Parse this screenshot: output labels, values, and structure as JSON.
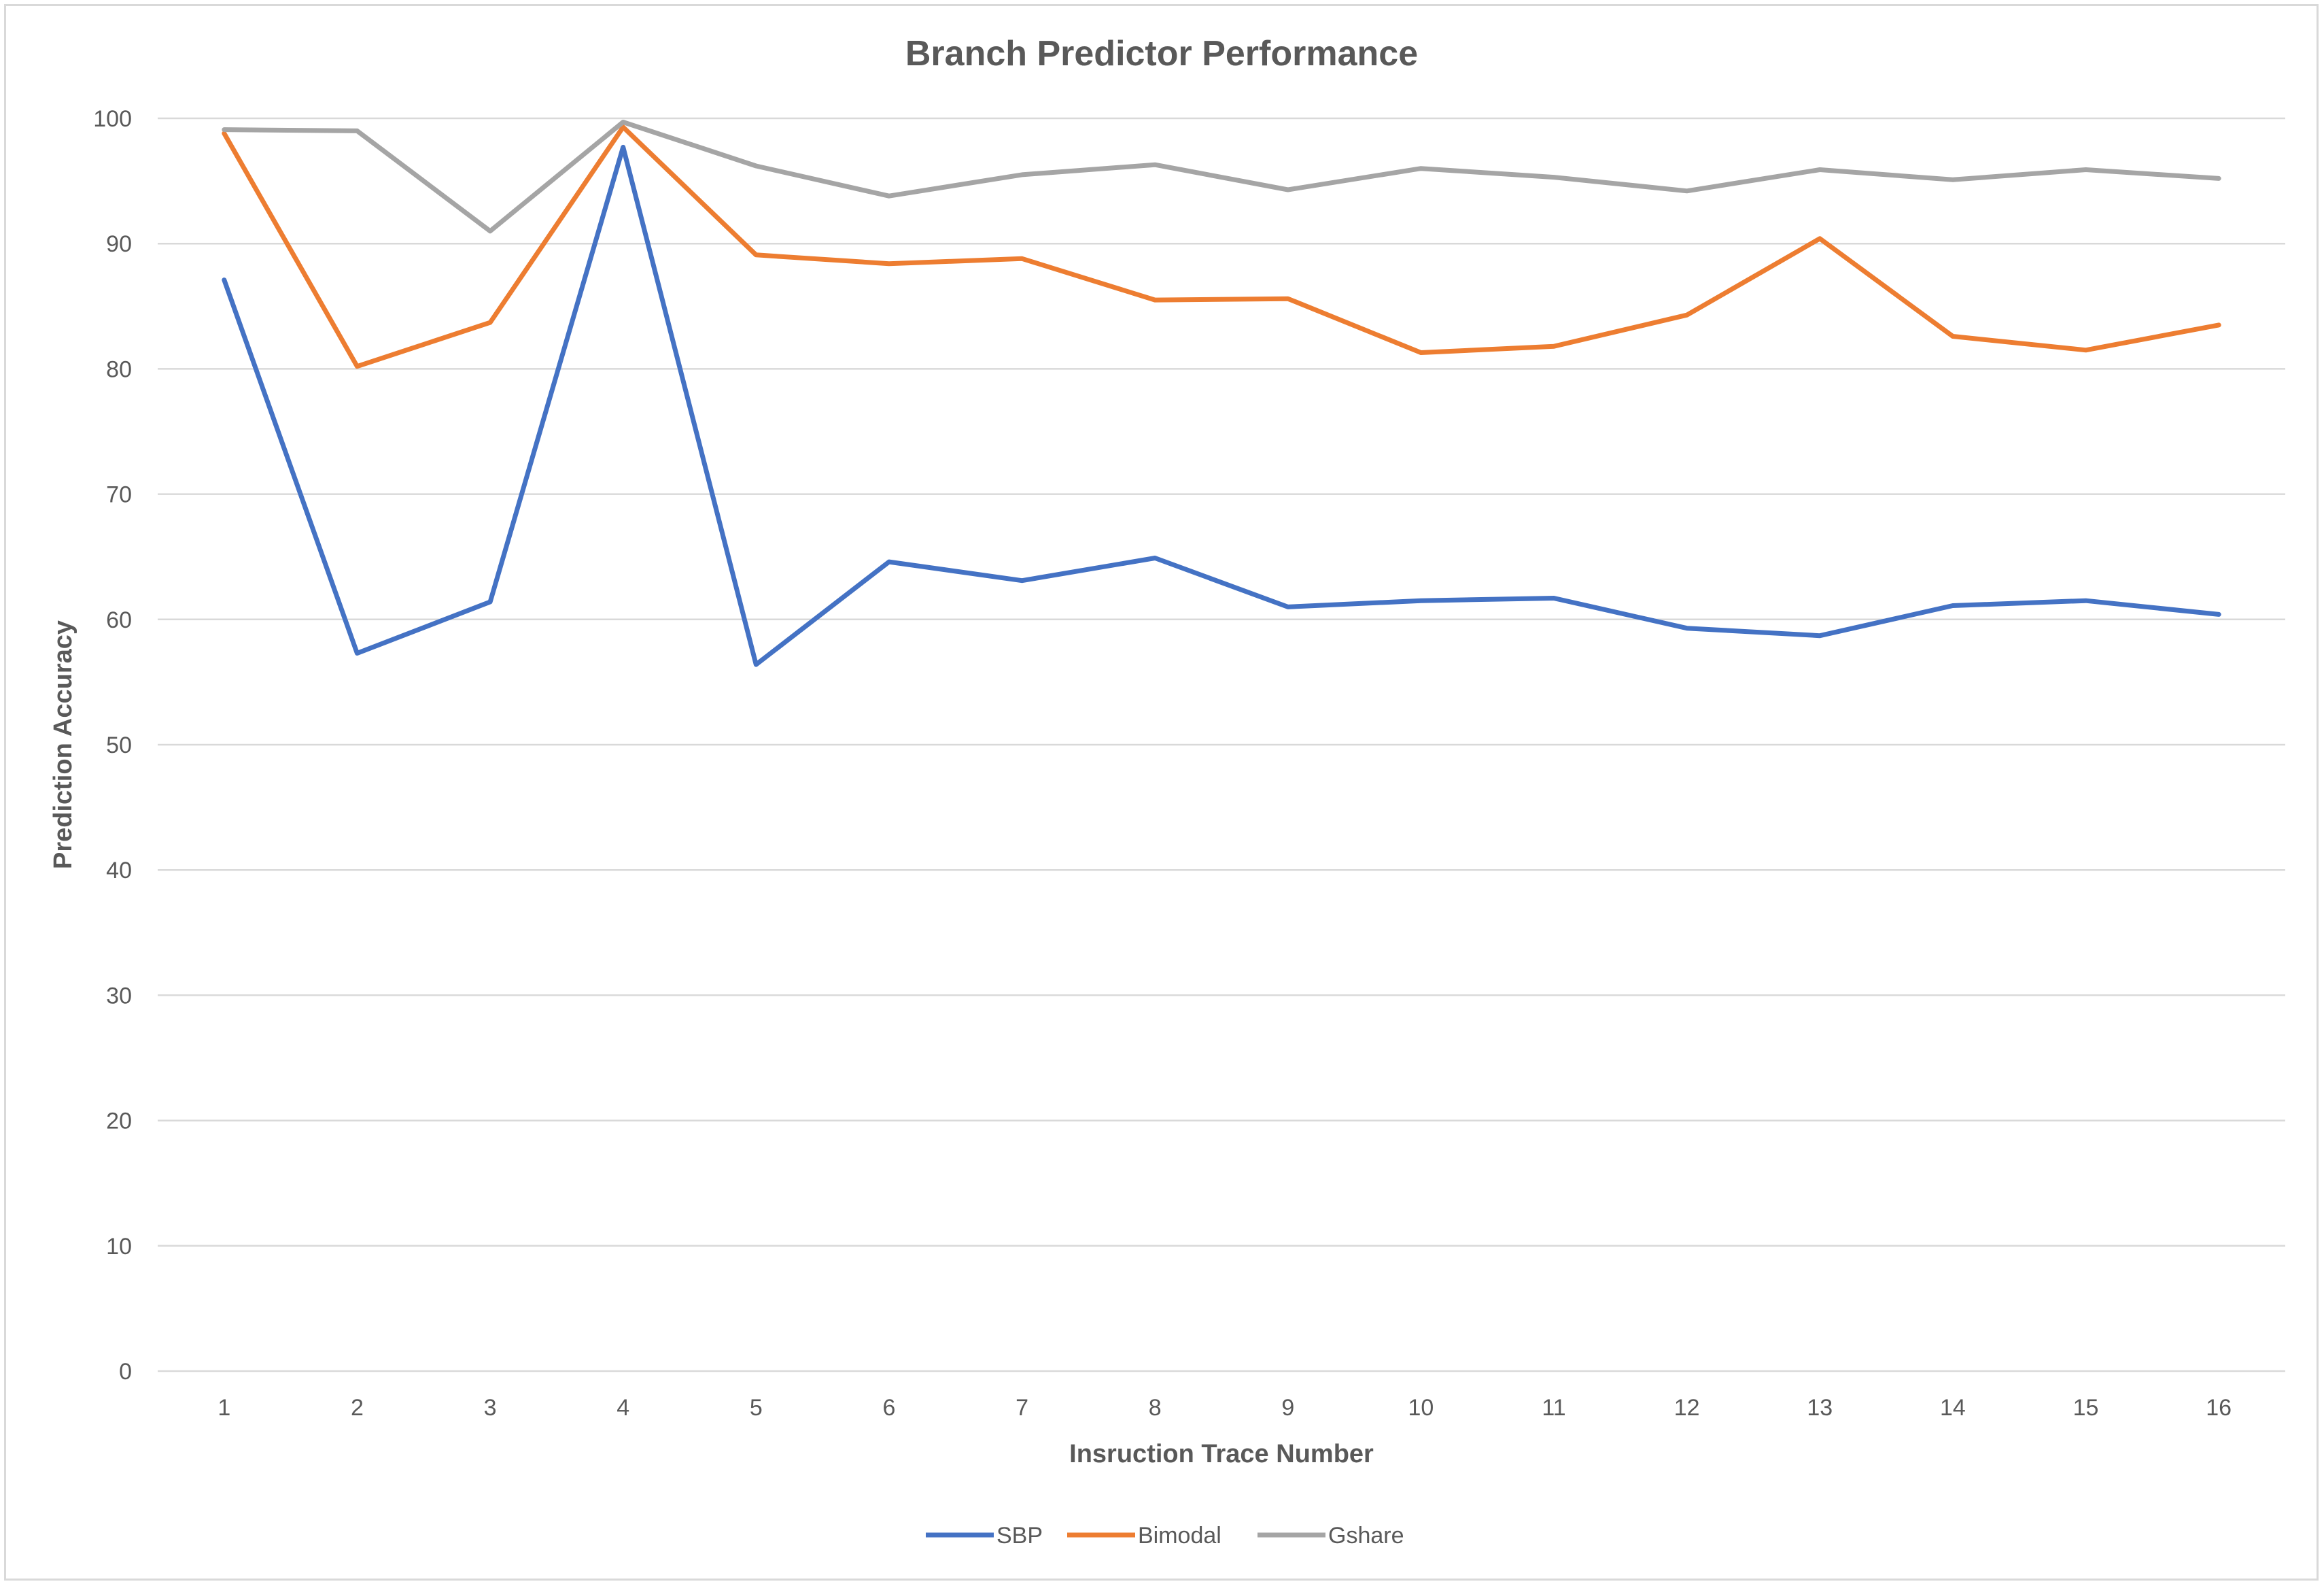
{
  "chart_data": {
    "type": "line",
    "title": "Branch Predictor Performance",
    "xlabel": "Insruction Trace Number",
    "ylabel": "Prediction Accuracy",
    "categories": [
      "1",
      "2",
      "3",
      "4",
      "5",
      "6",
      "7",
      "8",
      "9",
      "10",
      "11",
      "12",
      "13",
      "14",
      "15",
      "16"
    ],
    "ylim": [
      0,
      100
    ],
    "yticks": [
      0,
      10,
      20,
      30,
      40,
      50,
      60,
      70,
      80,
      90,
      100
    ],
    "grid": true,
    "legend_position": "bottom",
    "series": [
      {
        "name": "SBP",
        "color": "#4472c4",
        "values": [
          87.1,
          57.3,
          61.4,
          97.7,
          56.4,
          64.6,
          63.1,
          64.9,
          61.0,
          61.5,
          61.7,
          59.3,
          58.7,
          61.1,
          61.5,
          60.4
        ]
      },
      {
        "name": "Bimodal",
        "color": "#ed7d31",
        "values": [
          98.8,
          80.2,
          83.7,
          99.3,
          89.1,
          88.4,
          88.8,
          85.5,
          85.6,
          81.3,
          81.8,
          84.3,
          90.4,
          82.6,
          81.5,
          83.5
        ]
      },
      {
        "name": "Gshare",
        "color": "#a5a5a5",
        "values": [
          99.1,
          99.0,
          91.0,
          99.7,
          96.2,
          93.8,
          95.5,
          96.3,
          94.3,
          96.0,
          95.3,
          94.2,
          95.9,
          95.1,
          95.9,
          95.2
        ]
      }
    ]
  }
}
